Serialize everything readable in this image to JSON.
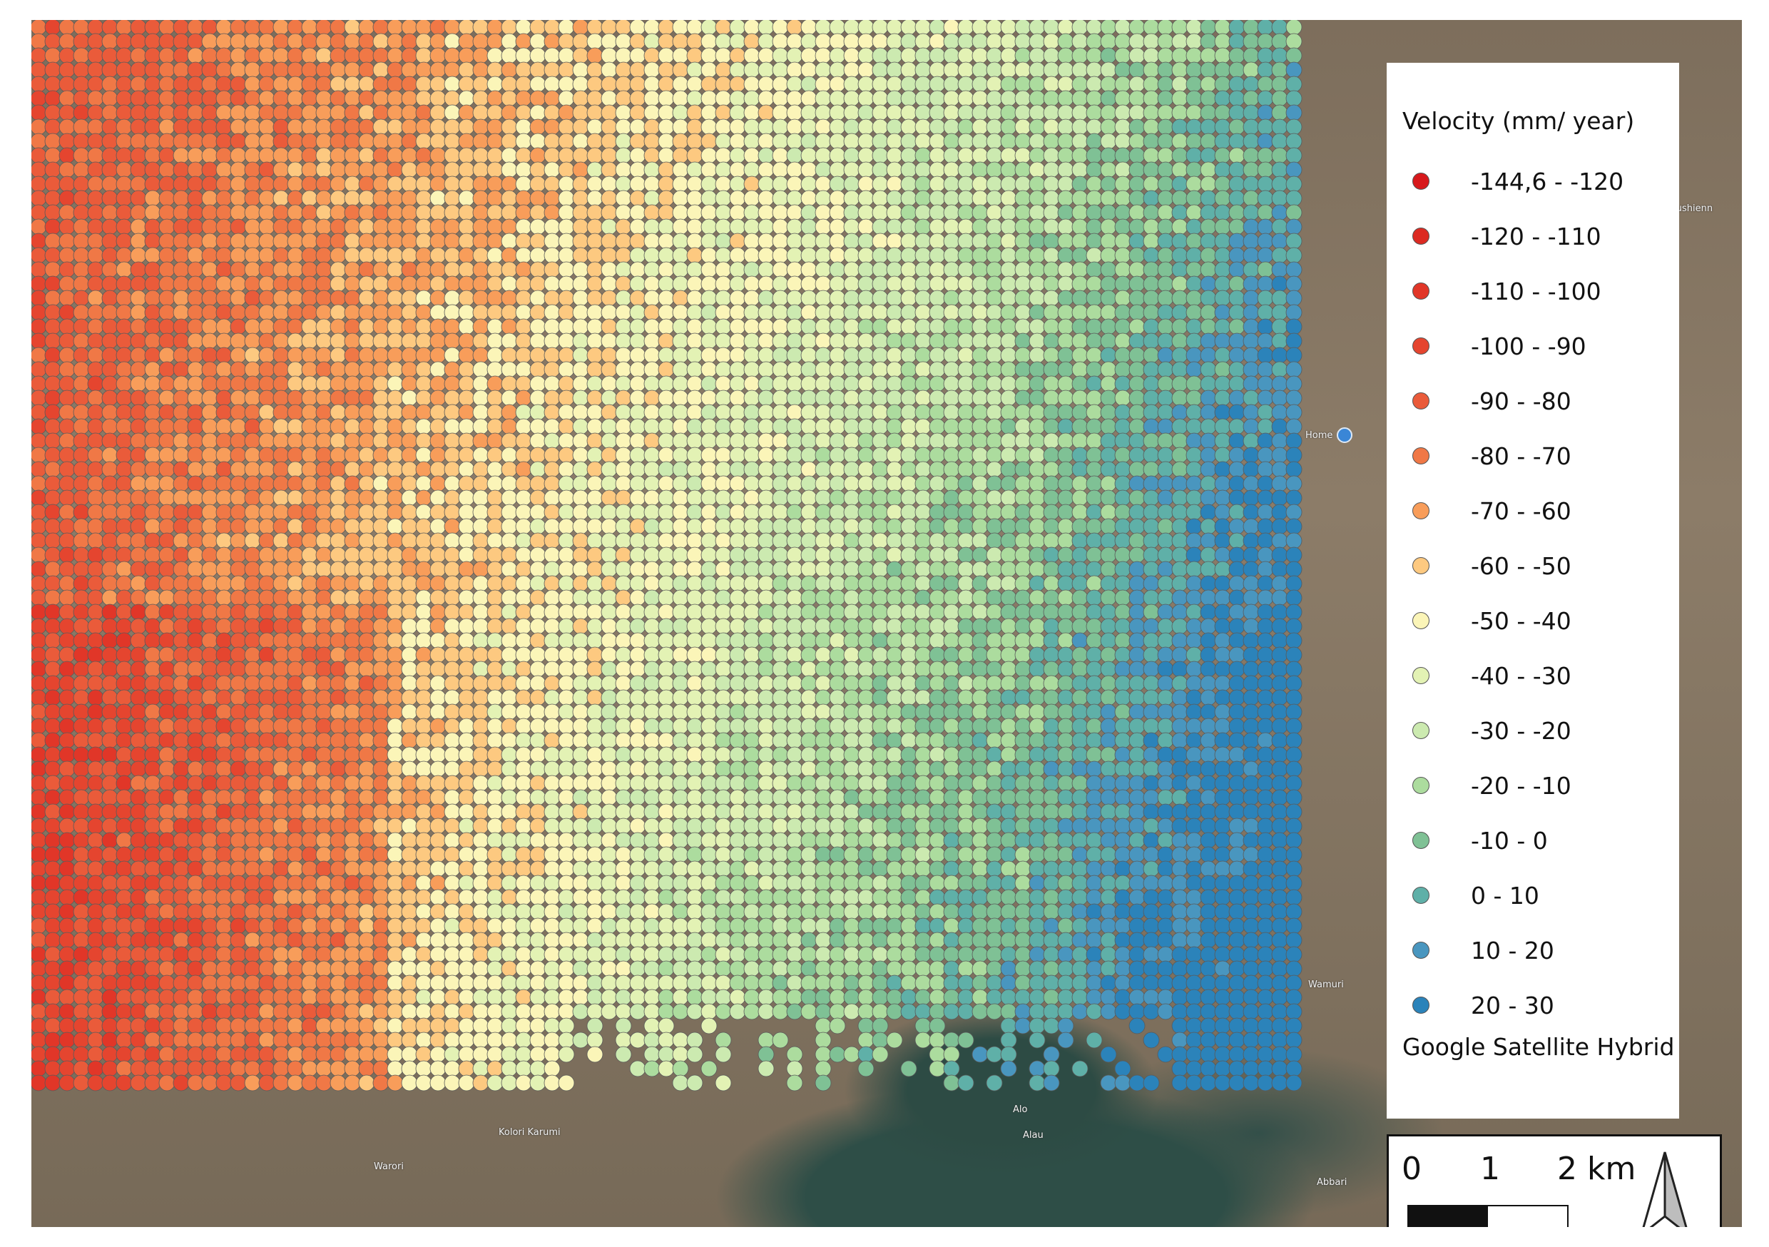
{
  "legend": {
    "title": "Velocity (mm/ year)",
    "classes": [
      {
        "label": "-144,6 - -120",
        "color": "#d7191c"
      },
      {
        "label": "-120 - -110",
        "color": "#dc2a22"
      },
      {
        "label": "-110 - -100",
        "color": "#e13628"
      },
      {
        "label": "-100 - -90",
        "color": "#e5452f"
      },
      {
        "label": "-90 - -80",
        "color": "#ea5b3a"
      },
      {
        "label": "-80 - -70",
        "color": "#f07846"
      },
      {
        "label": "-70 - -60",
        "color": "#f89d5a"
      },
      {
        "label": "-60 - -50",
        "color": "#fdc980"
      },
      {
        "label": "-50 - -40",
        "color": "#fbf5b8"
      },
      {
        "label": "-40 - -30",
        "color": "#e3f2b4"
      },
      {
        "label": "-30 - -20",
        "color": "#cceab0"
      },
      {
        "label": "-20 - -10",
        "color": "#acdc9e"
      },
      {
        "label": "-10 - 0",
        "color": "#7fc195"
      },
      {
        "label": "0 - 10",
        "color": "#5fb0a8"
      },
      {
        "label": "10 - 20",
        "color": "#4996bf"
      },
      {
        "label": "20 - 30",
        "color": "#2b83ba"
      }
    ],
    "basemap": "Google Satellite Hybrid"
  },
  "scalebar": {
    "ticks": [
      "0",
      "1",
      "2 km"
    ]
  },
  "north_arrow": {
    "icon": "north-arrow-icon"
  },
  "place_labels": [
    "rmushienn",
    "Home",
    "Wamuri",
    "Alo",
    "Alau",
    "Kolori Karumi",
    "Warori",
    "Abbari"
  ]
}
